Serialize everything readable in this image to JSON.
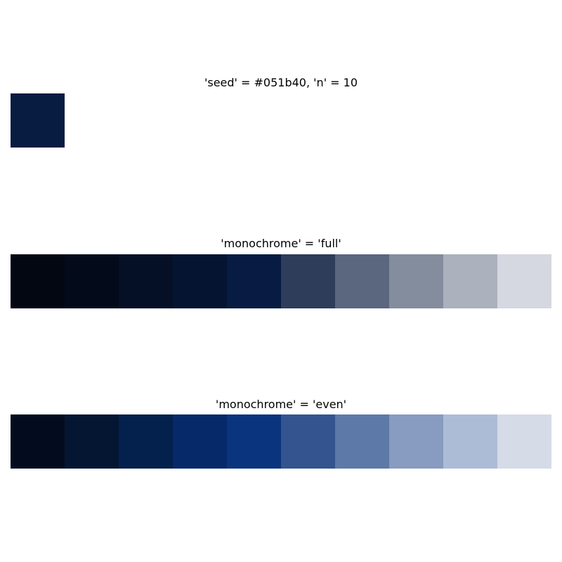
{
  "chart_data": [
    {
      "type": "heatmap",
      "title": "'seed' = #051b40, 'n' = 10",
      "colors": [
        "#081c42"
      ]
    },
    {
      "type": "heatmap",
      "title": "'monochrome' = 'full'",
      "colors": [
        "#030712",
        "#030a19",
        "#051026",
        "#041431",
        "#081b42",
        "#2d3d5a",
        "#5a677f",
        "#848d9e",
        "#abb1bd",
        "#d5d8e0"
      ]
    },
    {
      "type": "heatmap",
      "title": "'monochrome' = 'even'",
      "colors": [
        "#030c1e",
        "#041632",
        "#04204c",
        "#06296a",
        "#0a357e",
        "#33548f",
        "#5d79a8",
        "#889bc0",
        "#adbcd6",
        "#d5dbe7"
      ]
    }
  ]
}
